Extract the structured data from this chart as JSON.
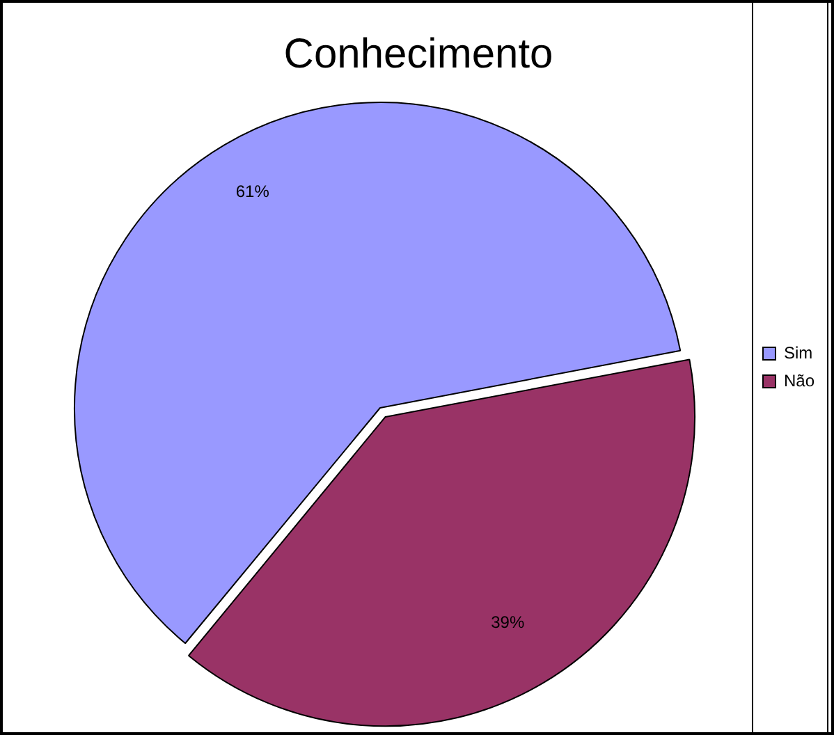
{
  "chart_data": {
    "type": "pie",
    "title": "Conhecimento",
    "categories": [
      "Sim",
      "Não"
    ],
    "values": [
      61,
      39
    ],
    "colors": [
      "#9999ff",
      "#993366"
    ],
    "value_labels": [
      "61%",
      "39%"
    ],
    "legend": "right"
  }
}
